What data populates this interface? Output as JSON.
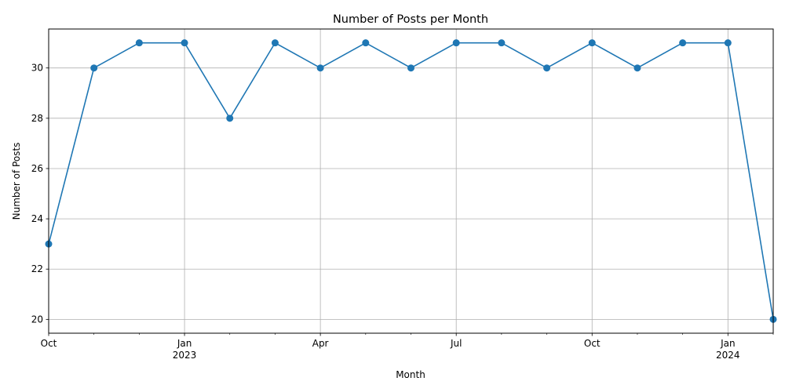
{
  "chart_data": {
    "type": "line",
    "title": "Number of Posts per Month",
    "xlabel": "Month",
    "ylabel": "Number of Posts",
    "x": [
      "2022-10",
      "2022-11",
      "2022-12",
      "2023-01",
      "2023-02",
      "2023-03",
      "2023-04",
      "2023-05",
      "2023-06",
      "2023-07",
      "2023-08",
      "2023-09",
      "2023-10",
      "2023-11",
      "2023-12",
      "2024-01",
      "2024-02"
    ],
    "series": [
      {
        "values": [
          23,
          30,
          31,
          31,
          28,
          31,
          30,
          31,
          30,
          31,
          31,
          30,
          31,
          30,
          31,
          31,
          20
        ],
        "color": "#1f77b4",
        "marker": "circle"
      }
    ],
    "ylim": [
      19.45,
      31.55
    ],
    "xlim": [
      "2022-10",
      "2024-02"
    ],
    "y_ticks": [
      20,
      22,
      24,
      26,
      28,
      30
    ],
    "x_major_ticks": [
      {
        "x": "2022-10",
        "label": "Oct",
        "sublabel": ""
      },
      {
        "x": "2023-01",
        "label": "Jan",
        "sublabel": "2023"
      },
      {
        "x": "2023-04",
        "label": "Apr",
        "sublabel": ""
      },
      {
        "x": "2023-07",
        "label": "Jul",
        "sublabel": ""
      },
      {
        "x": "2023-10",
        "label": "Oct",
        "sublabel": ""
      },
      {
        "x": "2024-01",
        "label": "Jan",
        "sublabel": "2024"
      }
    ],
    "x_minor_ticks": [
      "2022-11",
      "2022-12",
      "2023-02",
      "2023-03",
      "2023-05",
      "2023-06",
      "2023-08",
      "2023-09",
      "2023-11",
      "2023-12",
      "2024-02"
    ],
    "grid": true,
    "grid_color": "#b0b0b0"
  }
}
